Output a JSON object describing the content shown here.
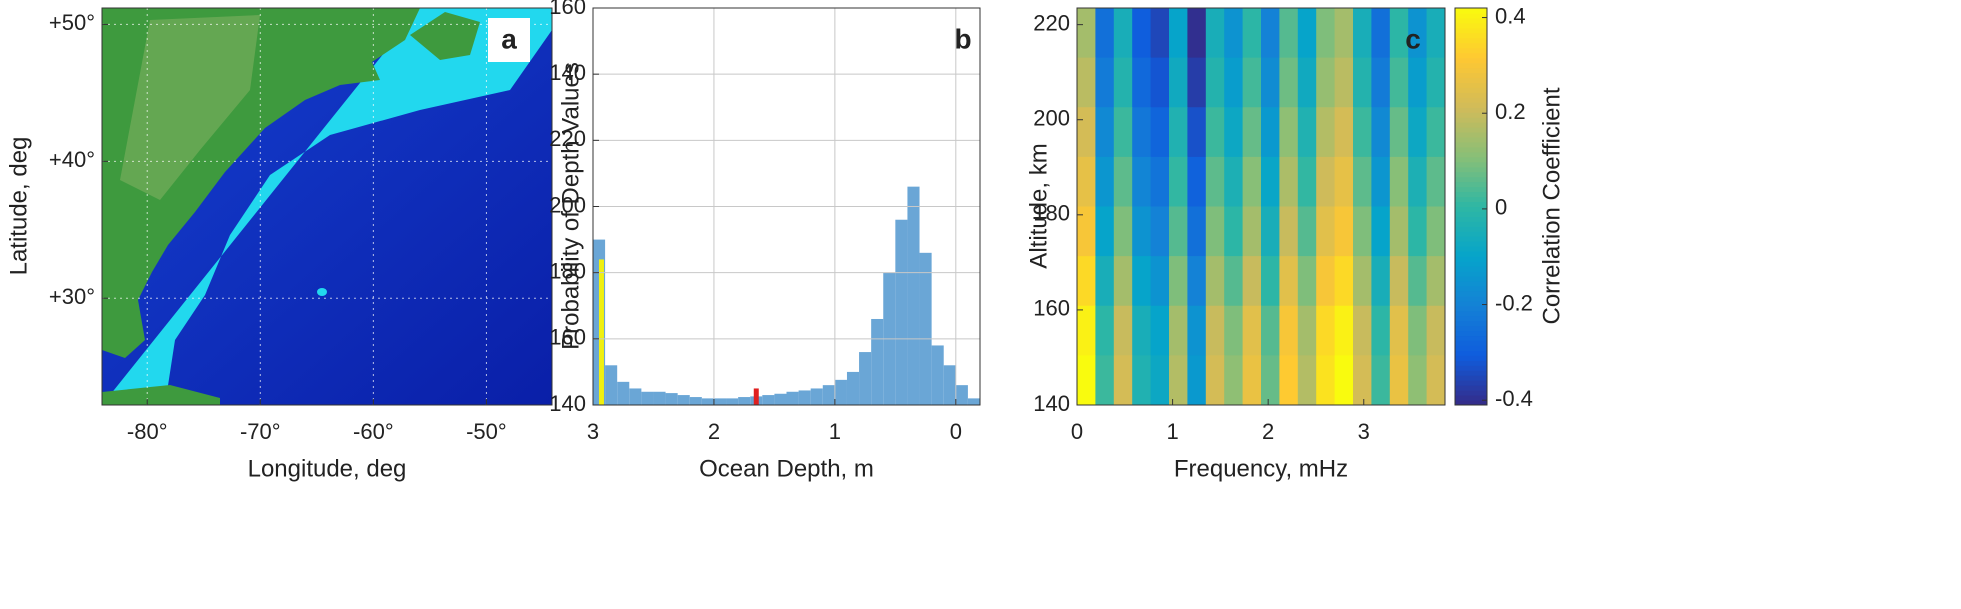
{
  "chart_data": [
    {
      "type": "map",
      "panel_label": "a",
      "xlabel": "Longitude, deg",
      "ylabel": "Latitude, deg",
      "xlim": [
        -84,
        -44.2
      ],
      "ylim": [
        22.2,
        51.2
      ],
      "xticks": [
        {
          "value": -80,
          "label": "-80°"
        },
        {
          "value": -70,
          "label": "-70°"
        },
        {
          "value": -60,
          "label": "-60°"
        },
        {
          "value": -50,
          "label": "-50°"
        }
      ],
      "yticks": [
        {
          "value": 30,
          "label": "+30°"
        },
        {
          "value": 40,
          "label": "+40°"
        },
        {
          "value": 50,
          "label": "+50°"
        }
      ],
      "grid": true
    },
    {
      "type": "histogram",
      "panel_label": "b",
      "xlabel": "Ocean Depth, m",
      "ylabel": "Probability of Depth Values",
      "xlim": [
        3.0,
        -0.2
      ],
      "ylim": [
        0,
        6
      ],
      "color": "#6aa6d6",
      "grid": true,
      "xticks": [
        3,
        2,
        1,
        0
      ],
      "yticks": [
        {
          "value": 0,
          "label": "140"
        },
        {
          "value": 1,
          "label": "160"
        },
        {
          "value": 2,
          "label": "180"
        },
        {
          "value": 3,
          "label": "200"
        },
        {
          "value": 4,
          "label": "220"
        },
        {
          "value": 5,
          "label": "140"
        },
        {
          "value": 6,
          "label": "160"
        }
      ],
      "bins": [
        3.0,
        2.9,
        2.8,
        2.7,
        2.6,
        2.5,
        2.4,
        2.3,
        2.2,
        2.1,
        2.0,
        1.9,
        1.8,
        1.7,
        1.6,
        1.5,
        1.4,
        1.3,
        1.2,
        1.1,
        1.0,
        0.9,
        0.8,
        0.7,
        0.6,
        0.5,
        0.4,
        0.3,
        0.2,
        0.1,
        0.0,
        -0.1,
        -0.2
      ],
      "values": [
        2.5,
        0.6,
        0.35,
        0.25,
        0.2,
        0.2,
        0.18,
        0.15,
        0.12,
        0.1,
        0.1,
        0.1,
        0.12,
        0.13,
        0.15,
        0.17,
        0.2,
        0.22,
        0.25,
        0.3,
        0.38,
        0.5,
        0.8,
        1.3,
        2.0,
        2.8,
        3.3,
        2.3,
        0.9,
        0.6,
        0.3,
        0.1
      ],
      "highlights": [
        {
          "x": 2.93,
          "value": 2.2,
          "color": "#f0f010"
        },
        {
          "x": 1.65,
          "value": 0.25,
          "color": "#e02020"
        }
      ]
    },
    {
      "type": "heatmap",
      "panel_label": "c",
      "xlabel": "Frequency, mHz",
      "ylabel": "Altitude, km",
      "colorbar_label": "Correlation Coefficient",
      "xlim": [
        0,
        3.85
      ],
      "ylim": [
        140,
        223.5
      ],
      "clim": [
        -0.41,
        0.42
      ],
      "xticks": [
        0,
        1,
        2,
        3
      ],
      "yticks": [
        140,
        160,
        180,
        200,
        220
      ],
      "cticks": [
        -0.4,
        -0.2,
        0,
        0.2,
        0.4
      ],
      "colormap": [
        "#352a87",
        "#0f5cdd",
        "#1481d6",
        "#06a4ca",
        "#2eb7a4",
        "#87bf77",
        "#d1bb59",
        "#fec832",
        "#f9fb0e"
      ],
      "z": [
        [
          0.15,
          -0.25,
          -0.05,
          -0.3,
          -0.35,
          -0.1,
          -0.4,
          -0.05,
          -0.15,
          0,
          -0.2,
          0.05,
          -0.1,
          0.1,
          0.15,
          -0.05,
          -0.25,
          0,
          -0.15,
          -0.05
        ],
        [
          0.18,
          -0.22,
          -0.02,
          -0.27,
          -0.32,
          -0.07,
          -0.37,
          -0.02,
          -0.12,
          0.03,
          -0.17,
          0.08,
          -0.07,
          0.13,
          0.18,
          -0.02,
          -0.22,
          0.03,
          -0.12,
          -0.02
        ],
        [
          0.22,
          -0.18,
          0.02,
          -0.23,
          -0.28,
          -0.03,
          -0.33,
          0.02,
          -0.08,
          0.07,
          -0.13,
          0.12,
          -0.03,
          0.17,
          0.22,
          0.02,
          -0.18,
          0.07,
          -0.08,
          0.02
        ],
        [
          0.26,
          -0.14,
          0.06,
          -0.19,
          -0.24,
          0.01,
          -0.29,
          0.06,
          -0.04,
          0.11,
          -0.09,
          0.16,
          0.01,
          0.21,
          0.26,
          0.06,
          -0.14,
          0.11,
          -0.04,
          0.06
        ],
        [
          0.3,
          -0.1,
          0.1,
          -0.15,
          -0.2,
          0.05,
          -0.25,
          0.1,
          0,
          0.15,
          -0.05,
          0.2,
          0.05,
          0.25,
          0.3,
          0.1,
          -0.1,
          0.15,
          0,
          0.1
        ],
        [
          0.35,
          -0.05,
          0.15,
          -0.1,
          -0.15,
          0.1,
          -0.2,
          0.15,
          0.05,
          0.2,
          0,
          0.25,
          0.1,
          0.3,
          0.35,
          0.15,
          -0.05,
          0.2,
          0.05,
          0.15
        ],
        [
          0.4,
          0,
          0.2,
          -0.05,
          -0.1,
          0.15,
          -0.15,
          0.2,
          0.1,
          0.25,
          0.05,
          0.3,
          0.15,
          0.35,
          0.4,
          0.2,
          0,
          0.25,
          0.1,
          0.2
        ],
        [
          0.42,
          0.02,
          0.22,
          -0.03,
          -0.08,
          0.17,
          -0.13,
          0.22,
          0.12,
          0.27,
          0.07,
          0.32,
          0.17,
          0.37,
          0.42,
          0.22,
          0.02,
          0.27,
          0.12,
          0.22
        ]
      ]
    }
  ]
}
